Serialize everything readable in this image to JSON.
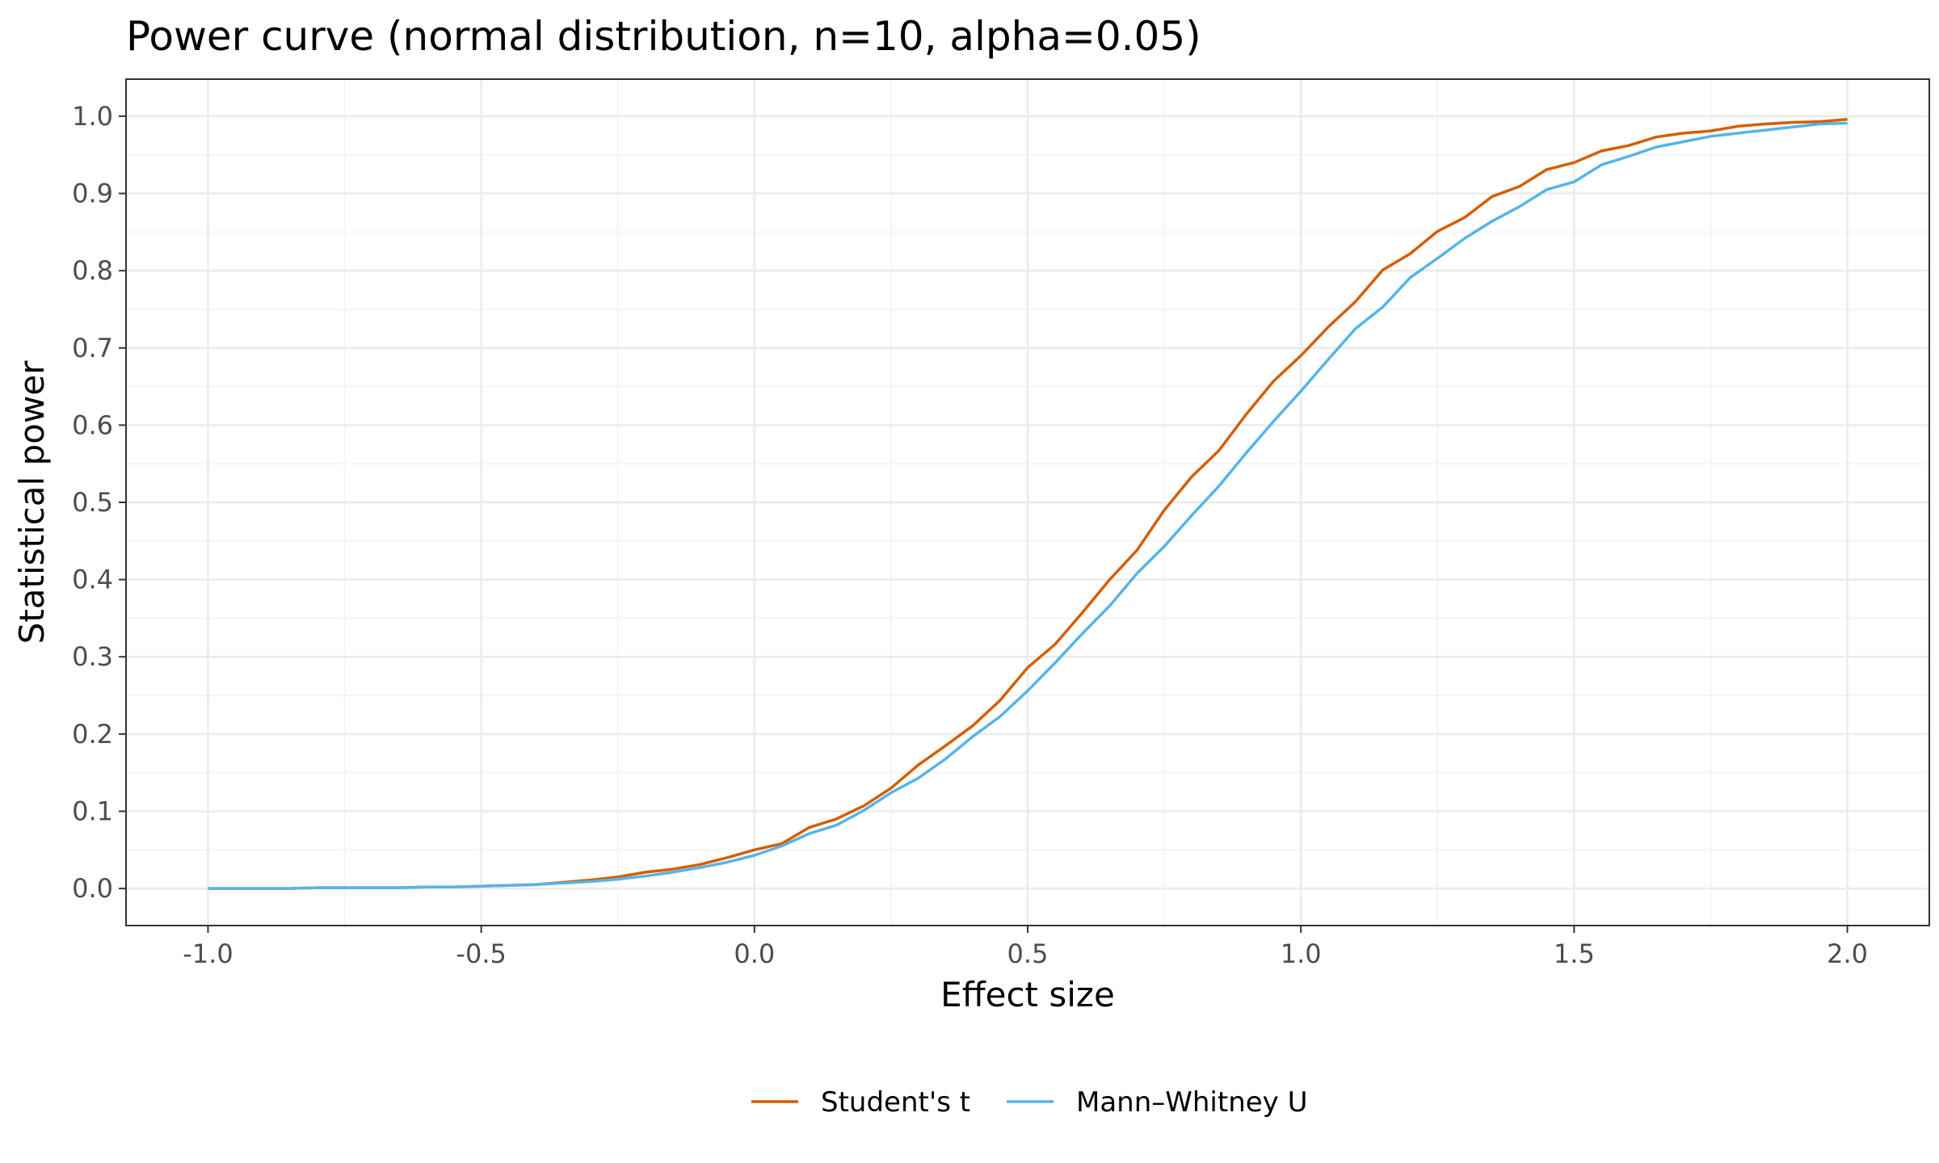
{
  "chart_data": {
    "type": "line",
    "title": "Power curve (normal distribution, n=10, alpha=0.05)",
    "xlabel": "Effect size",
    "ylabel": "Statistical power",
    "xlim": [
      -1.15,
      2.15
    ],
    "ylim": [
      -0.048,
      1.048
    ],
    "x_ticks": [
      -1.0,
      -0.5,
      0.0,
      0.5,
      1.0,
      1.5,
      2.0
    ],
    "x_tick_labels": [
      "-1.0",
      "-0.5",
      "0.0",
      "0.5",
      "1.0",
      "1.5",
      "2.0"
    ],
    "y_ticks": [
      0.0,
      0.1,
      0.2,
      0.3,
      0.4,
      0.5,
      0.6,
      0.7,
      0.8,
      0.9,
      1.0
    ],
    "y_tick_labels": [
      "0.0",
      "0.1",
      "0.2",
      "0.3",
      "0.4",
      "0.5",
      "0.6",
      "0.7",
      "0.8",
      "0.9",
      "1.0"
    ],
    "grid": true,
    "legend_position": "bottom",
    "x": [
      -1.0,
      -0.95,
      -0.9,
      -0.85,
      -0.8,
      -0.75,
      -0.7,
      -0.65,
      -0.6,
      -0.55,
      -0.5,
      -0.45,
      -0.4,
      -0.35,
      -0.3,
      -0.25,
      -0.2,
      -0.15,
      -0.1,
      -0.05,
      0.0,
      0.05,
      0.1,
      0.15,
      0.2,
      0.25,
      0.3,
      0.35,
      0.4,
      0.45,
      0.5,
      0.55,
      0.6,
      0.65,
      0.7,
      0.75,
      0.8,
      0.85,
      0.9,
      0.95,
      1.0,
      1.05,
      1.1,
      1.15,
      1.2,
      1.25,
      1.3,
      1.35,
      1.4,
      1.45,
      1.5,
      1.55,
      1.6,
      1.65,
      1.7,
      1.75,
      1.8,
      1.85,
      1.9,
      1.95,
      2.0
    ],
    "series": [
      {
        "name": "Student's t",
        "color": "#D55E00",
        "values": [
          0.0,
          0.0,
          0.0,
          0.0,
          0.001,
          0.001,
          0.001,
          0.001,
          0.002,
          0.002,
          0.003,
          0.004,
          0.005,
          0.008,
          0.011,
          0.015,
          0.021,
          0.025,
          0.031,
          0.04,
          0.05,
          0.058,
          0.079,
          0.09,
          0.107,
          0.13,
          0.16,
          0.185,
          0.211,
          0.244,
          0.286,
          0.316,
          0.357,
          0.4,
          0.438,
          0.49,
          0.533,
          0.567,
          0.614,
          0.657,
          0.69,
          0.727,
          0.76,
          0.801,
          0.822,
          0.851,
          0.869,
          0.896,
          0.909,
          0.931,
          0.94,
          0.955,
          0.962,
          0.973,
          0.978,
          0.981,
          0.987,
          0.99,
          0.992,
          0.993,
          0.996
        ]
      },
      {
        "name": "Mann–Whitney U",
        "color": "#56B4E9",
        "values": [
          0.0,
          0.0,
          0.0,
          0.0,
          0.001,
          0.001,
          0.001,
          0.001,
          0.002,
          0.002,
          0.003,
          0.004,
          0.005,
          0.007,
          0.009,
          0.012,
          0.016,
          0.021,
          0.027,
          0.034,
          0.043,
          0.055,
          0.071,
          0.082,
          0.101,
          0.124,
          0.143,
          0.168,
          0.197,
          0.223,
          0.256,
          0.292,
          0.33,
          0.366,
          0.408,
          0.443,
          0.483,
          0.521,
          0.564,
          0.605,
          0.644,
          0.685,
          0.725,
          0.753,
          0.791,
          0.816,
          0.842,
          0.864,
          0.883,
          0.905,
          0.915,
          0.937,
          0.948,
          0.96,
          0.967,
          0.974,
          0.978,
          0.982,
          0.986,
          0.99,
          0.991
        ]
      }
    ]
  }
}
